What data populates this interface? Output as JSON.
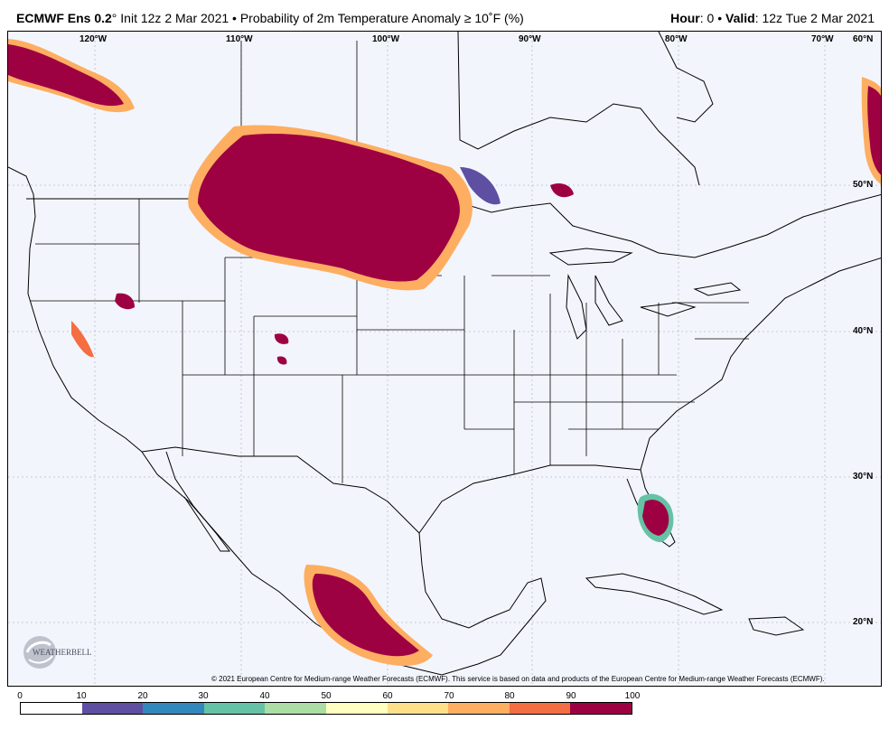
{
  "header": {
    "model": "ECMWF Ens 0.2",
    "model_degree": "°",
    "init_text": " Init 12z 2 Mar 2021 • Probability of 2m Temperature Anomaly ≥ 10˚F (%)",
    "hour_label": "Hour",
    "hour_value": ": 0 • ",
    "valid_label": "Valid",
    "valid_value": ": 12z Tue 2 Mar 2021"
  },
  "longitude_labels": [
    "120°W",
    "110°W",
    "100°W",
    "90°W",
    "80°W",
    "70°W"
  ],
  "latitude_labels": [
    "60°N",
    "50°N",
    "40°N",
    "30°N",
    "20°N"
  ],
  "credit": "© 2021 European Centre for Medium-range Weather Forecasts (ECMWF). This service is based on data and products of the European Centre for Medium-range Weather Forecasts (ECMWF).",
  "logo_text": "WEATHERBELL",
  "colorbar": {
    "ticks": [
      "0",
      "10",
      "20",
      "30",
      "40",
      "50",
      "60",
      "70",
      "80",
      "90",
      "100"
    ],
    "colors": [
      "#ffffff",
      "#5e4fa2",
      "#3288bd",
      "#66c2a5",
      "#abdda4",
      "#ffffbf",
      "#fee08b",
      "#fdae61",
      "#f46d43",
      "#9e0142"
    ]
  },
  "colors": {
    "map_background": "#f3f5fc",
    "high_probability": "#9e0142"
  }
}
